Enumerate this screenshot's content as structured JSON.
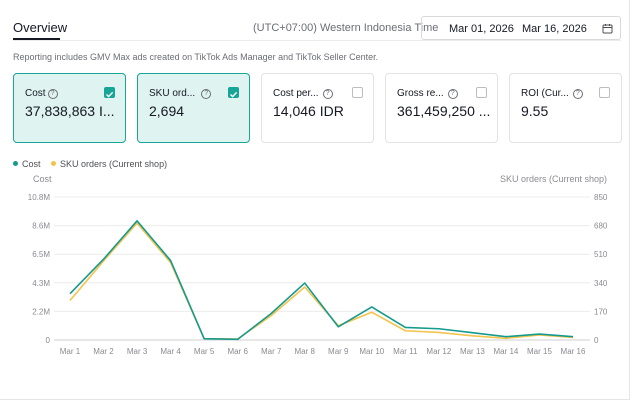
{
  "header": {
    "tab_label": "Overview",
    "timezone": "(UTC+07:00) Western Indonesia Time",
    "date_start": "Mar 01, 2026",
    "date_separator": "-",
    "date_end": "Mar 16, 2026"
  },
  "note": "Reporting includes GMV Max ads created on TikTok Ads Manager and TikTok Seller Center.",
  "cards": [
    {
      "label": "Cost",
      "value": "37,838,863 I...",
      "selected": true
    },
    {
      "label": "SKU ord...",
      "value": "2,694",
      "selected": true
    },
    {
      "label": "Cost per...",
      "value": "14,046 IDR",
      "selected": false
    },
    {
      "label": "Gross re...",
      "value": "361,459,250 ...",
      "selected": false
    },
    {
      "label": "ROI (Cur...",
      "value": "9.55",
      "selected": false
    }
  ],
  "legend": {
    "cost": "Cost",
    "sku": "SKU orders (Current shop)"
  },
  "axis_titles": {
    "left": "Cost",
    "right": "SKU orders (Current shop)"
  },
  "colors": {
    "accent": "#16a596",
    "cost_line": "#159a8c",
    "sku_line": "#f2c44e",
    "selected_card_bg": "#dff3f1"
  },
  "chart_data": {
    "type": "line",
    "categories": [
      "Mar 1",
      "Mar 2",
      "Mar 3",
      "Mar 4",
      "Mar 5",
      "Mar 6",
      "Mar 7",
      "Mar 8",
      "Mar 9",
      "Mar 10",
      "Mar 11",
      "Mar 12",
      "Mar 13",
      "Mar 14",
      "Mar 15",
      "Mar 16"
    ],
    "left_ticks": [
      "0",
      "2.2M",
      "4.3M",
      "6.5M",
      "8.6M",
      "10.8M"
    ],
    "right_ticks": [
      "0",
      "170",
      "340",
      "510",
      "680",
      "850"
    ],
    "left_ylim": [
      0,
      10800000
    ],
    "right_ylim": [
      0,
      850
    ],
    "series": [
      {
        "name": "Cost",
        "axis": "left",
        "color": "#159a8c",
        "values": [
          3500000,
          6100000,
          9000000,
          6000000,
          100000,
          50000,
          2000000,
          4300000,
          1000000,
          2500000,
          950000,
          850000,
          550000,
          250000,
          450000,
          250000
        ]
      },
      {
        "name": "SKU orders (Current shop)",
        "axis": "right",
        "color": "#f2c44e",
        "values": [
          235,
          470,
          695,
          460,
          8,
          6,
          145,
          315,
          85,
          165,
          55,
          45,
          25,
          10,
          30,
          15
        ]
      }
    ],
    "grid": true,
    "legend_position": "top-left"
  }
}
